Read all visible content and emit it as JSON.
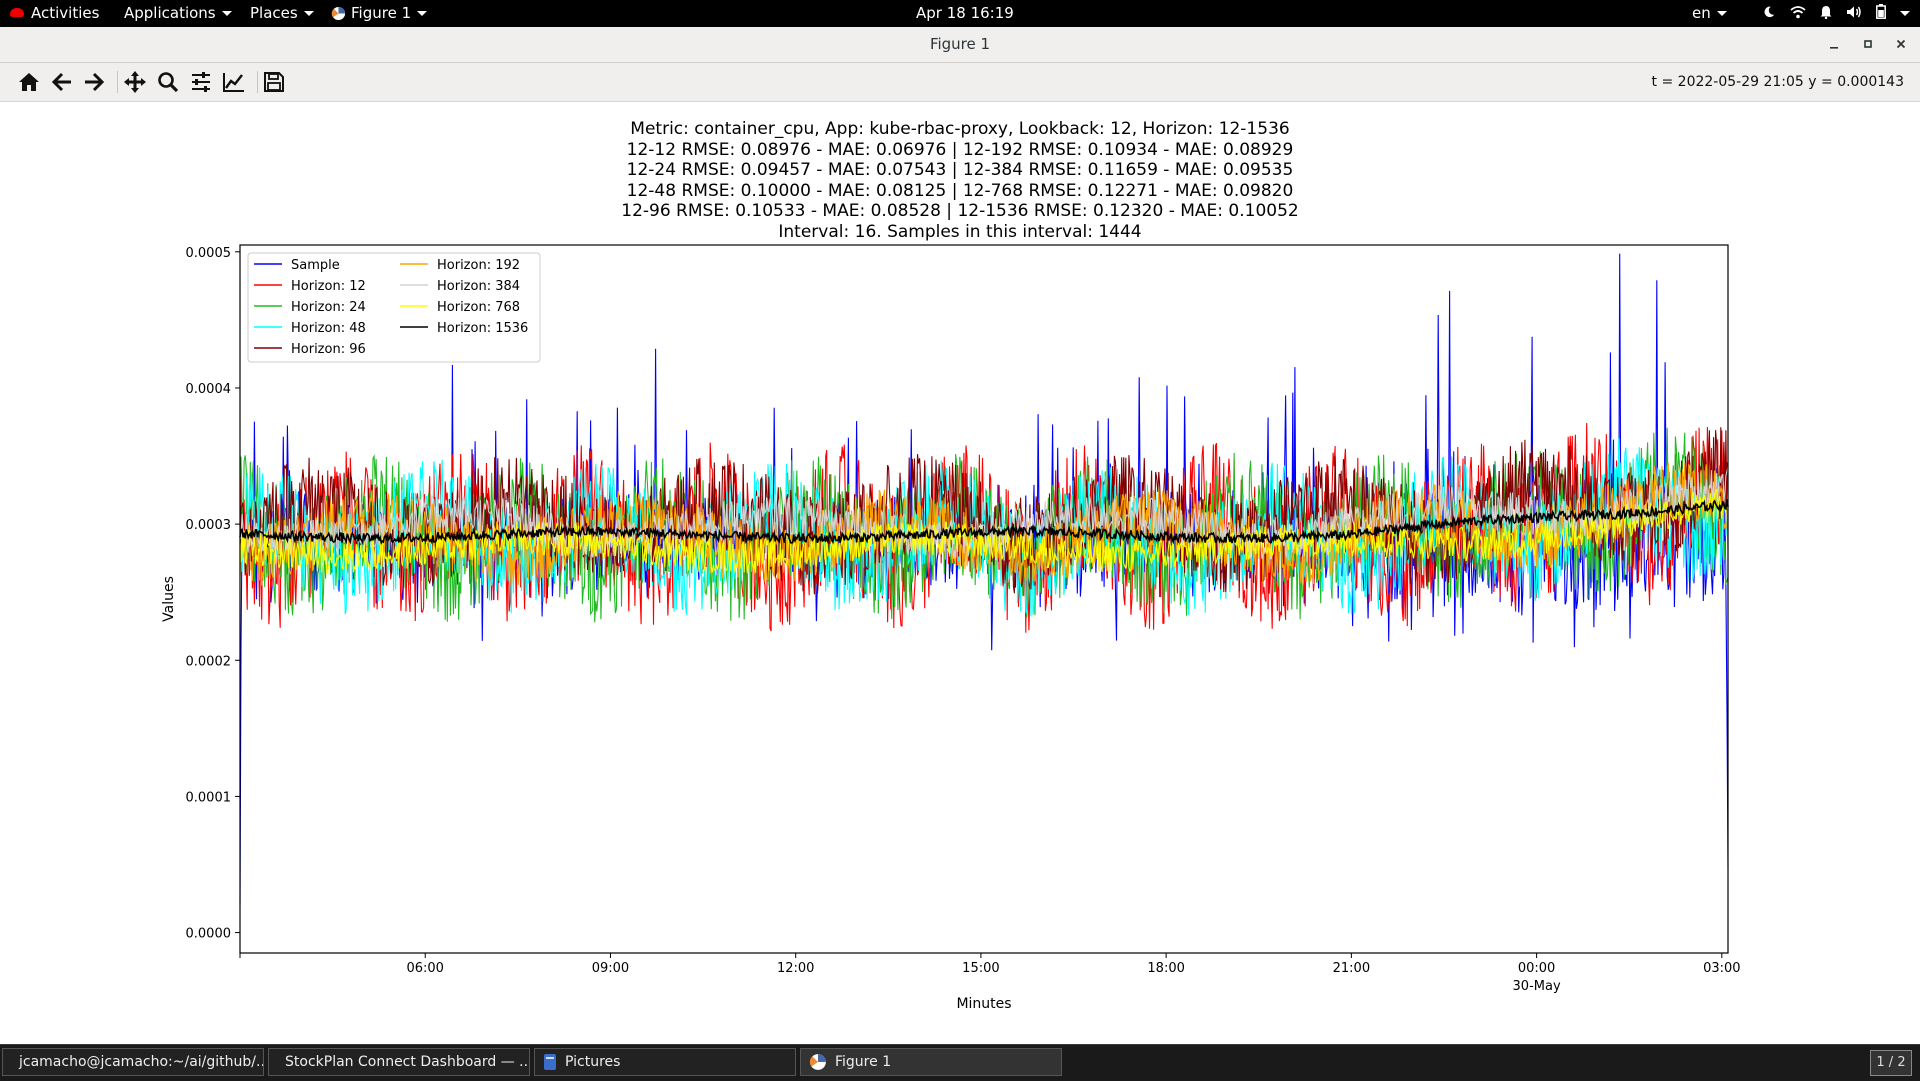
{
  "topbar": {
    "activities": "Activities",
    "applications": "Applications",
    "places": "Places",
    "app_menu": "Figure 1",
    "clock": "Apr 18  16:19",
    "language": "en"
  },
  "window": {
    "title": "Figure 1"
  },
  "toolbar": {
    "icons": [
      "home-icon",
      "back-icon",
      "forward-icon",
      "pan-icon",
      "zoom-icon",
      "configure-subplots-icon",
      "edit-axis-icon",
      "save-icon"
    ],
    "coords": "t = 2022-05-29 21:05  y = 0.000143"
  },
  "chart": {
    "title_lines": [
      "Metric: container_cpu, App: kube-rbac-proxy, Lookback: 12, Horizon: 12-1536",
      "12-12 RMSE: 0.08976 - MAE: 0.06976 | 12-192 RMSE: 0.10934 - MAE: 0.08929",
      "12-24 RMSE: 0.09457 - MAE: 0.07543 | 12-384 RMSE: 0.11659 - MAE: 0.09535",
      "12-48 RMSE: 0.10000 - MAE: 0.08125 | 12-768 RMSE: 0.12271 - MAE: 0.09820",
      "12-96 RMSE: 0.10533 - MAE: 0.08528 | 12-1536 RMSE: 0.12320 - MAE: 0.10052",
      "Interval: 16. Samples in this interval: 1444"
    ]
  },
  "chart_data": {
    "type": "line",
    "xlabel": "Minutes",
    "ylabel": "Values",
    "ylim": [
      -1.5e-05,
      0.000505
    ],
    "y_ticks": [
      "0.0000",
      "0.0001",
      "0.0002",
      "0.0003",
      "0.0004",
      "0.0005"
    ],
    "y_tick_values": [
      0,
      0.0001,
      0.0002,
      0.0003,
      0.0004,
      0.0005
    ],
    "x_ticks": [
      "06:00",
      "09:00",
      "12:00",
      "15:00",
      "18:00",
      "21:00",
      "00:00",
      "03:00"
    ],
    "x_tick_hours": [
      6,
      9,
      12,
      15,
      18,
      21,
      24,
      27
    ],
    "x_tick_sublabel": {
      "tick": "00:00",
      "label": "30-May"
    },
    "x_range_hours": [
      3.0,
      27.1
    ],
    "legend_position": "top-left",
    "grid": false,
    "series": [
      {
        "name": "Sample",
        "color": "#0000ff"
      },
      {
        "name": "Horizon: 12",
        "color": "#ff0000"
      },
      {
        "name": "Horizon: 24",
        "color": "#22bb22"
      },
      {
        "name": "Horizon: 48",
        "color": "#00ffff"
      },
      {
        "name": "Horizon: 96",
        "color": "#800000"
      },
      {
        "name": "Horizon: 192",
        "color": "#ffa500"
      },
      {
        "name": "Horizon: 384",
        "color": "#d3d3d3"
      },
      {
        "name": "Horizon: 768",
        "color": "#ffff00"
      },
      {
        "name": "Horizon: 1536",
        "color": "#000000"
      }
    ],
    "approx_levels": {
      "Sample": {
        "mean": 0.00028,
        "min": 1.8e-05,
        "max": 0.000506
      },
      "Horizon: 192": {
        "mean": 0.00029
      },
      "Horizon: 384": {
        "mean": 0.0003
      },
      "Horizon: 768": {
        "mean": 0.000282
      },
      "Horizon: 1536": {
        "mean": 0.000291
      }
    }
  },
  "taskbar": {
    "tasks": [
      "jcamacho@jcamacho:~/ai/github/...",
      "StockPlan Connect Dashboard — ...",
      "Pictures",
      "Figure 1"
    ],
    "workspace": "1 / 2"
  }
}
